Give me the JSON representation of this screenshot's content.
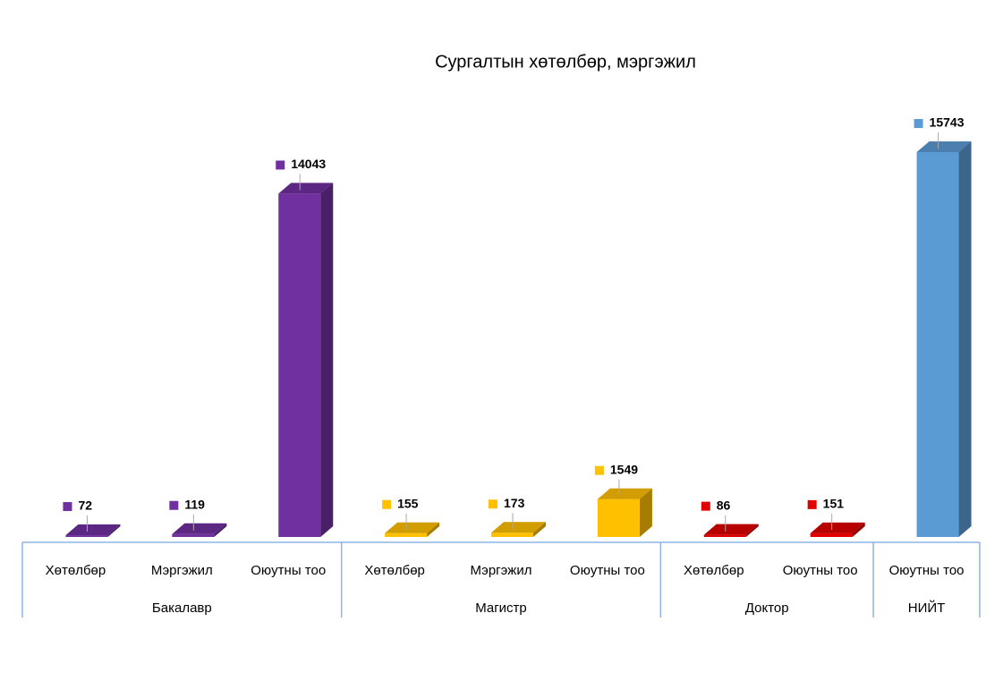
{
  "chart_data": {
    "type": "bar3d",
    "title": "Сургалтын хөтөлбөр, мэргэжил",
    "groups": [
      {
        "name": "Бакалавр",
        "color": "#7030a0",
        "categories": [
          "Хөтөлбөр",
          "Мэргэжил",
          "Оюутны тоо"
        ],
        "values": [
          72,
          119,
          14043
        ]
      },
      {
        "name": "Магистр",
        "color": "#ffc000",
        "categories": [
          "Хөтөлбөр",
          "Мэргэжил",
          "Оюутны тоо"
        ],
        "values": [
          155,
          173,
          1549
        ]
      },
      {
        "name": "Доктор",
        "color": "#e00000",
        "categories": [
          "Хөтөлбөр",
          "Оюутны тоо"
        ],
        "values": [
          86,
          151
        ]
      },
      {
        "name": "НИЙТ",
        "color": "#5b9bd5",
        "categories": [
          "Оюутны тоо"
        ],
        "values": [
          15743
        ]
      }
    ]
  }
}
